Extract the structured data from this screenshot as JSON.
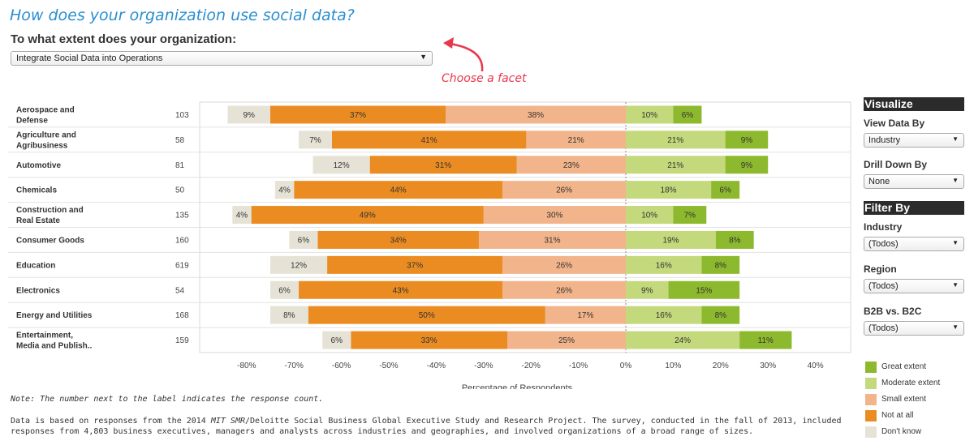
{
  "page": {
    "title": "How does your organization use social data?",
    "question": "To what extent does your organization:",
    "facet_selected": "Integrate Social Data into Operations",
    "hint": "Choose a facet",
    "note": "Note:  The number next to the label indicates the response count.",
    "footer_a": "Data is based on responses from the 2014 ",
    "footer_b": "MIT SMR",
    "footer_c": "/Deloitte Social Business Global Executive Study and Research Project.  The survey, conducted in the fall of 2013, included responses from 4,803 business executives, managers and analysts across industries and geographies, and involved organizations of a broad range of sizes."
  },
  "sidebar": {
    "visualize_header": "Visualize",
    "view_by_label": "View Data By",
    "view_by_value": "Industry",
    "drill_label": "Drill Down By",
    "drill_value": "None",
    "filter_header": "Filter By",
    "industry_label": "Industry",
    "industry_value": "(Todos)",
    "region_label": "Region",
    "region_value": "(Todos)",
    "b2b_label": "B2B vs. B2C",
    "b2b_value": "(Todos)"
  },
  "chart_data": {
    "type": "bar",
    "stacking": "diverging",
    "xlabel": "Percentage of Respondents",
    "xlim": [
      -80,
      40
    ],
    "xticks": [
      "-80%",
      "-70%",
      "-60%",
      "-50%",
      "-40%",
      "-30%",
      "-20%",
      "-10%",
      "0%",
      "10%",
      "20%",
      "30%",
      "40%"
    ],
    "legend": [
      {
        "name": "Great extent",
        "color": "#8db92e"
      },
      {
        "name": "Moderate extent",
        "color": "#c3d97b"
      },
      {
        "name": "Small extent",
        "color": "#f2b48a"
      },
      {
        "name": "Not at all",
        "color": "#eb8c22"
      },
      {
        "name": "Don't know",
        "color": "#e6e3d6"
      }
    ],
    "categories": [
      {
        "label": [
          "Aerospace and",
          "Defense"
        ],
        "count": "103",
        "dont_know": 9,
        "not_at_all": 37,
        "small": 38,
        "moderate": 10,
        "great": 6
      },
      {
        "label": [
          "Agriculture and",
          "Agribusiness"
        ],
        "count": "58",
        "dont_know": 7,
        "not_at_all": 41,
        "small": 21,
        "moderate": 21,
        "great": 9
      },
      {
        "label": [
          "Automotive"
        ],
        "count": "81",
        "dont_know": 12,
        "not_at_all": 31,
        "small": 23,
        "moderate": 21,
        "great": 9
      },
      {
        "label": [
          "Chemicals"
        ],
        "count": "50",
        "dont_know": 4,
        "not_at_all": 44,
        "small": 26,
        "moderate": 18,
        "great": 6
      },
      {
        "label": [
          "Construction and",
          "Real Estate"
        ],
        "count": "135",
        "dont_know": 4,
        "not_at_all": 49,
        "small": 30,
        "moderate": 10,
        "great": 7
      },
      {
        "label": [
          "Consumer Goods"
        ],
        "count": "160",
        "dont_know": 6,
        "not_at_all": 34,
        "small": 31,
        "moderate": 19,
        "great": 8
      },
      {
        "label": [
          "Education"
        ],
        "count": "619",
        "dont_know": 12,
        "not_at_all": 37,
        "small": 26,
        "moderate": 16,
        "great": 8
      },
      {
        "label": [
          "Electronics"
        ],
        "count": "54",
        "dont_know": 6,
        "not_at_all": 43,
        "small": 26,
        "moderate": 9,
        "great": 15
      },
      {
        "label": [
          "Energy and Utilities"
        ],
        "count": "168",
        "dont_know": 8,
        "not_at_all": 50,
        "small": 17,
        "moderate": 16,
        "great": 8
      },
      {
        "label": [
          "Entertainment,",
          "Media and Publish.."
        ],
        "count": "159",
        "dont_know": 6,
        "not_at_all": 33,
        "small": 25,
        "moderate": 24,
        "great": 11
      }
    ]
  }
}
